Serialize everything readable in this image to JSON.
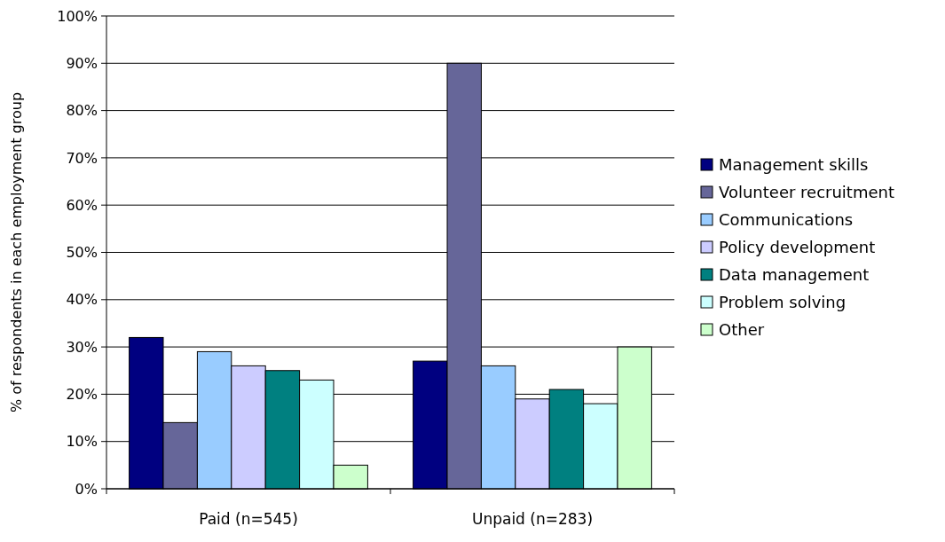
{
  "chart_data": {
    "type": "bar",
    "ylabel": "% of respondents in each employment group",
    "categories": [
      "Paid (n=545)",
      "Unpaid (n=283)"
    ],
    "series": [
      {
        "name": "Management skills",
        "color": "#000080",
        "values": [
          32,
          27
        ]
      },
      {
        "name": "Volunteer recruitment",
        "color": "#666699",
        "values": [
          14,
          90
        ]
      },
      {
        "name": "Communications",
        "color": "#99ccff",
        "values": [
          29,
          26
        ]
      },
      {
        "name": "Policy development",
        "color": "#ccccff",
        "values": [
          26,
          19
        ]
      },
      {
        "name": "Data management",
        "color": "#008080",
        "values": [
          25,
          21
        ]
      },
      {
        "name": "Problem solving",
        "color": "#ccffff",
        "values": [
          23,
          18
        ]
      },
      {
        "name": "Other",
        "color": "#ccffcc",
        "values": [
          5,
          30
        ]
      }
    ],
    "ylim": [
      0,
      100
    ],
    "yticks": [
      {
        "value": 0,
        "label": "0%"
      },
      {
        "value": 10,
        "label": "10%"
      },
      {
        "value": 20,
        "label": "20%"
      },
      {
        "value": 30,
        "label": "30%"
      },
      {
        "value": 40,
        "label": "40%"
      },
      {
        "value": 50,
        "label": "50%"
      },
      {
        "value": 60,
        "label": "60%"
      },
      {
        "value": 70,
        "label": "70%"
      },
      {
        "value": 80,
        "label": "80%"
      },
      {
        "value": 90,
        "label": "90%"
      },
      {
        "value": 100,
        "label": "100%"
      }
    ],
    "grid": "y",
    "legend": "right"
  }
}
